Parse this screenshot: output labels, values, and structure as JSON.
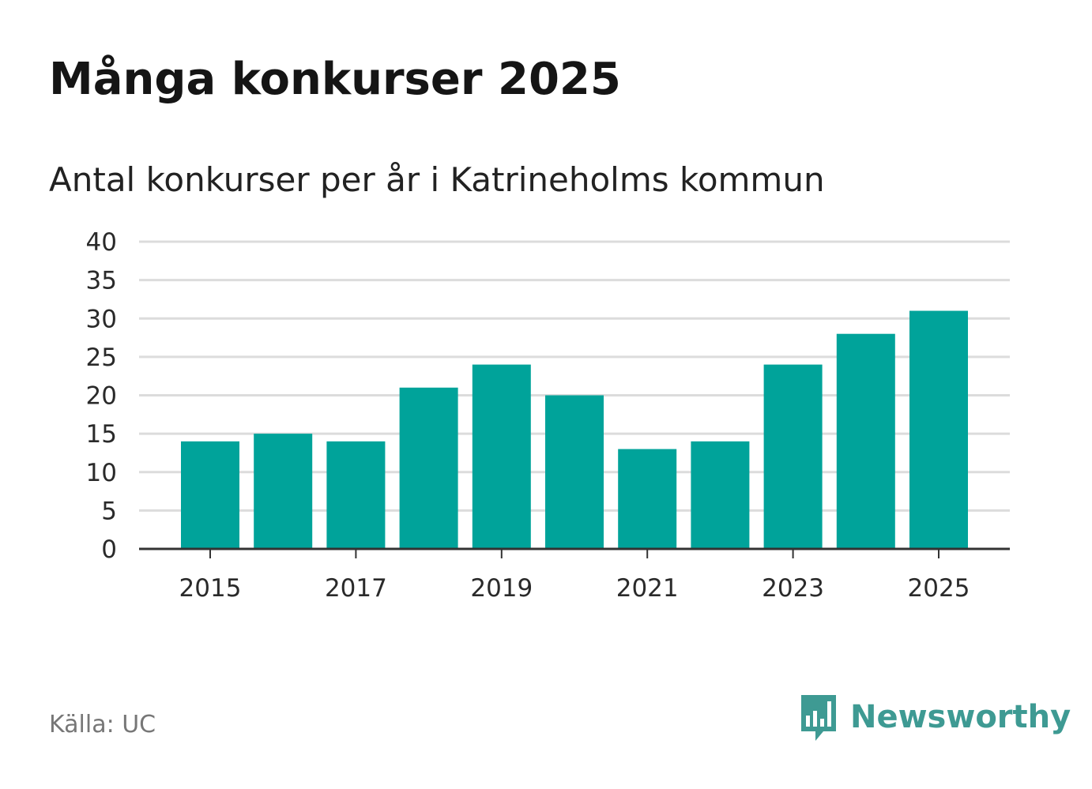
{
  "colors": {
    "bar": "#00a39a",
    "grid": "#dcdcdc",
    "axis": "#333333",
    "brand": "#3e9a93"
  },
  "chart_data": {
    "type": "bar",
    "title": "Många konkurser 2025",
    "subtitle": "Antal konkurser per år i Katrineholms kommun",
    "categories": [
      "2015",
      "2016",
      "2017",
      "2018",
      "2019",
      "2020",
      "2021",
      "2022",
      "2023",
      "2024",
      "2025"
    ],
    "values": [
      14,
      15,
      14,
      21,
      24,
      20,
      13,
      14,
      24,
      28,
      31
    ],
    "x_tick_labels": [
      "2015",
      "2017",
      "2019",
      "2021",
      "2023",
      "2025"
    ],
    "y_ticks": [
      0,
      5,
      10,
      15,
      20,
      25,
      30,
      35,
      40
    ],
    "ylim": [
      0,
      40
    ],
    "xlabel": "",
    "ylabel": "",
    "grid": true,
    "legend": "none"
  },
  "footer": {
    "source": "Källa: UC",
    "brand_name": "Newsworthy",
    "brand_icon": "bar-chart-speech-bubble-icon"
  }
}
